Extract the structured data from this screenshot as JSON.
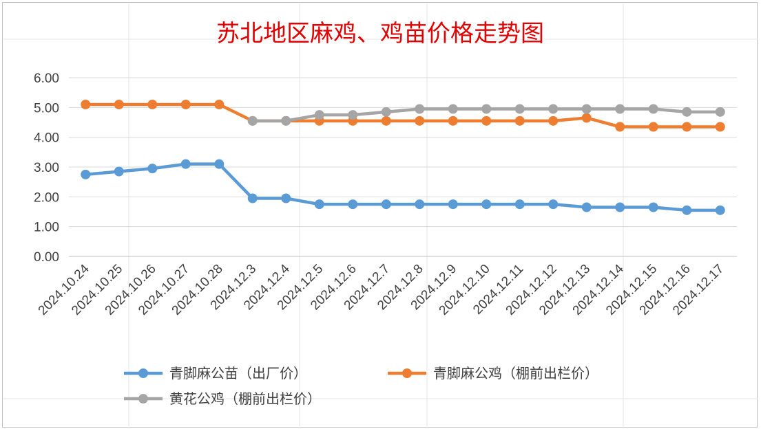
{
  "chart_data": {
    "type": "line",
    "title": "苏北地区麻鸡、鸡苗价格走势图",
    "xlabel": "",
    "ylabel": "",
    "ylim": [
      0,
      6
    ],
    "yticks": [
      "0.00",
      "1.00",
      "2.00",
      "3.00",
      "4.00",
      "5.00",
      "6.00"
    ],
    "grid": true,
    "legend_position": "bottom",
    "categories": [
      "2024.10.24",
      "2024.10.25",
      "2024.10.26",
      "2024.10.27",
      "2024.10.28",
      "2024.12.3",
      "2024.12.4",
      "2024.12.5",
      "2024.12.6",
      "2024.12.7",
      "2024.12.8",
      "2024.12.9",
      "2024.12.10",
      "2024.12.11",
      "2024.12.12",
      "2024.12.13",
      "2024.12.14",
      "2024.12.15",
      "2024.12.16",
      "2024.12.17"
    ],
    "series": [
      {
        "name": "青脚麻公苗（出厂价）",
        "color": "#5b9bd5",
        "values": [
          2.75,
          2.85,
          2.95,
          3.1,
          3.1,
          1.95,
          1.95,
          1.75,
          1.75,
          1.75,
          1.75,
          1.75,
          1.75,
          1.75,
          1.75,
          1.65,
          1.65,
          1.65,
          1.55,
          1.55
        ]
      },
      {
        "name": "青脚麻公鸡（棚前出栏价）",
        "color": "#ed7d31",
        "values": [
          5.1,
          5.1,
          5.1,
          5.1,
          5.1,
          4.55,
          4.55,
          4.55,
          4.55,
          4.55,
          4.55,
          4.55,
          4.55,
          4.55,
          4.55,
          4.65,
          4.35,
          4.35,
          4.35,
          4.35
        ]
      },
      {
        "name": "黄花公鸡（棚前出栏价）",
        "color": "#a5a5a5",
        "values": [
          null,
          null,
          null,
          null,
          null,
          4.55,
          4.55,
          4.75,
          4.75,
          4.85,
          4.95,
          4.95,
          4.95,
          4.95,
          4.95,
          4.95,
          4.95,
          4.95,
          4.85,
          4.85
        ]
      }
    ]
  }
}
